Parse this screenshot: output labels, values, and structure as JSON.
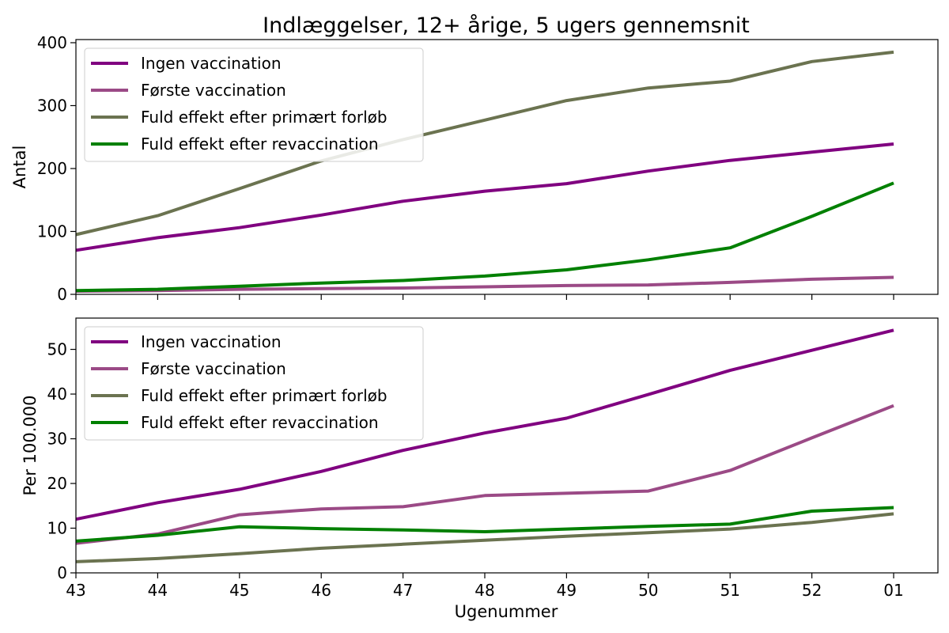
{
  "title": "Indlæggelser, 12+ årige, 5 ugers gennemsnit",
  "xlabel": "Ugenummer",
  "series_colors": {
    "Ingen vaccination": "#800080",
    "Første vaccination": "#9b4a86",
    "Fuld effekt efter primært forløb": "#6b7350",
    "Fuld effekt efter revaccination": "#008000"
  },
  "chart_data": [
    {
      "type": "line",
      "title": "Indlæggelser, 12+ årige, 5 ugers gennemsnit",
      "xlabel": "",
      "ylabel": "Antal",
      "categories": [
        "43",
        "44",
        "45",
        "46",
        "47",
        "48",
        "49",
        "50",
        "51",
        "52",
        "01"
      ],
      "ylim": [
        0,
        405
      ],
      "yticks": [
        0,
        100,
        200,
        300,
        400
      ],
      "legend": "top-left",
      "grid": false,
      "series": [
        {
          "name": "Ingen vaccination",
          "values": [
            70,
            90,
            106,
            126,
            148,
            164,
            176,
            196,
            213,
            226,
            239
          ]
        },
        {
          "name": "Første vaccination",
          "values": [
            5,
            6,
            8,
            9,
            10,
            12,
            14,
            15,
            19,
            24,
            27
          ]
        },
        {
          "name": "Fuld effekt efter primært forløb",
          "values": [
            95,
            125,
            168,
            212,
            246,
            277,
            308,
            328,
            339,
            370,
            385
          ]
        },
        {
          "name": "Fuld effekt efter revaccination",
          "values": [
            6,
            8,
            13,
            18,
            22,
            29,
            39,
            55,
            74,
            124,
            177
          ]
        }
      ]
    },
    {
      "type": "line",
      "title": "",
      "xlabel": "Ugenummer",
      "ylabel": "Per 100.000",
      "categories": [
        "43",
        "44",
        "45",
        "46",
        "47",
        "48",
        "49",
        "50",
        "51",
        "52",
        "01"
      ],
      "ylim": [
        0,
        57
      ],
      "yticks": [
        0,
        10,
        20,
        30,
        40,
        50
      ],
      "legend": "top-left",
      "grid": false,
      "series": [
        {
          "name": "Ingen vaccination",
          "values": [
            12.0,
            15.7,
            18.7,
            22.7,
            27.4,
            31.3,
            34.6,
            39.9,
            45.3,
            49.8,
            54.3
          ]
        },
        {
          "name": "Første vaccination",
          "values": [
            6.6,
            8.7,
            13.0,
            14.3,
            14.8,
            17.3,
            17.8,
            18.3,
            22.9,
            30.2,
            37.4
          ]
        },
        {
          "name": "Fuld effekt efter primært forløb",
          "values": [
            2.5,
            3.2,
            4.3,
            5.5,
            6.4,
            7.3,
            8.2,
            9.0,
            9.8,
            11.3,
            13.2
          ]
        },
        {
          "name": "Fuld effekt efter revaccination",
          "values": [
            7.1,
            8.4,
            10.3,
            9.9,
            9.6,
            9.2,
            9.8,
            10.4,
            10.9,
            13.8,
            14.6
          ]
        }
      ]
    }
  ]
}
